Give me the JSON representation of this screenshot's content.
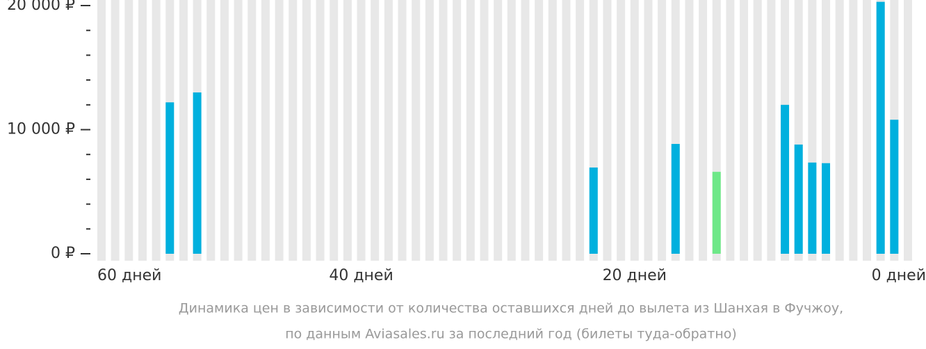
{
  "chart_data": {
    "type": "bar",
    "x": [
      54,
      52,
      23,
      17,
      14,
      9,
      8,
      7,
      6,
      2,
      1
    ],
    "values": [
      12200,
      13000,
      6950,
      8850,
      6600,
      12000,
      8800,
      7350,
      7300,
      20300,
      10800
    ],
    "colors": [
      "#00b0de",
      "#00b0de",
      "#00b0de",
      "#00b0de",
      "#6ee888",
      "#00b0de",
      "#00b0de",
      "#00b0de",
      "#00b0de",
      "#00b0de",
      "#00b0de"
    ],
    "background_color": "#e8e8e8",
    "xlim": [
      59,
      0
    ],
    "xticks": [
      {
        "value": 60,
        "label": "60 дней"
      },
      {
        "value": 40,
        "label": "40 дней"
      },
      {
        "value": 20,
        "label": "20 дней"
      },
      {
        "value": 0,
        "label": "0 дней"
      }
    ],
    "ylim": [
      0,
      20000
    ],
    "yticks": [
      {
        "value": 0,
        "label": "0 ₽"
      },
      {
        "value": 10000,
        "label": "10 000 ₽"
      },
      {
        "value": 20000,
        "label": "20 000 ₽"
      }
    ],
    "yticks_minor": [
      2000,
      4000,
      6000,
      8000,
      12000,
      14000,
      16000,
      18000
    ],
    "caption": [
      "Динамика цен в зависимости от количества оставшихся дней до вылета из Шанхая в Фучжоу,",
      "по данным Aviasales.ru за последний год (билеты туда-обратно)"
    ]
  }
}
